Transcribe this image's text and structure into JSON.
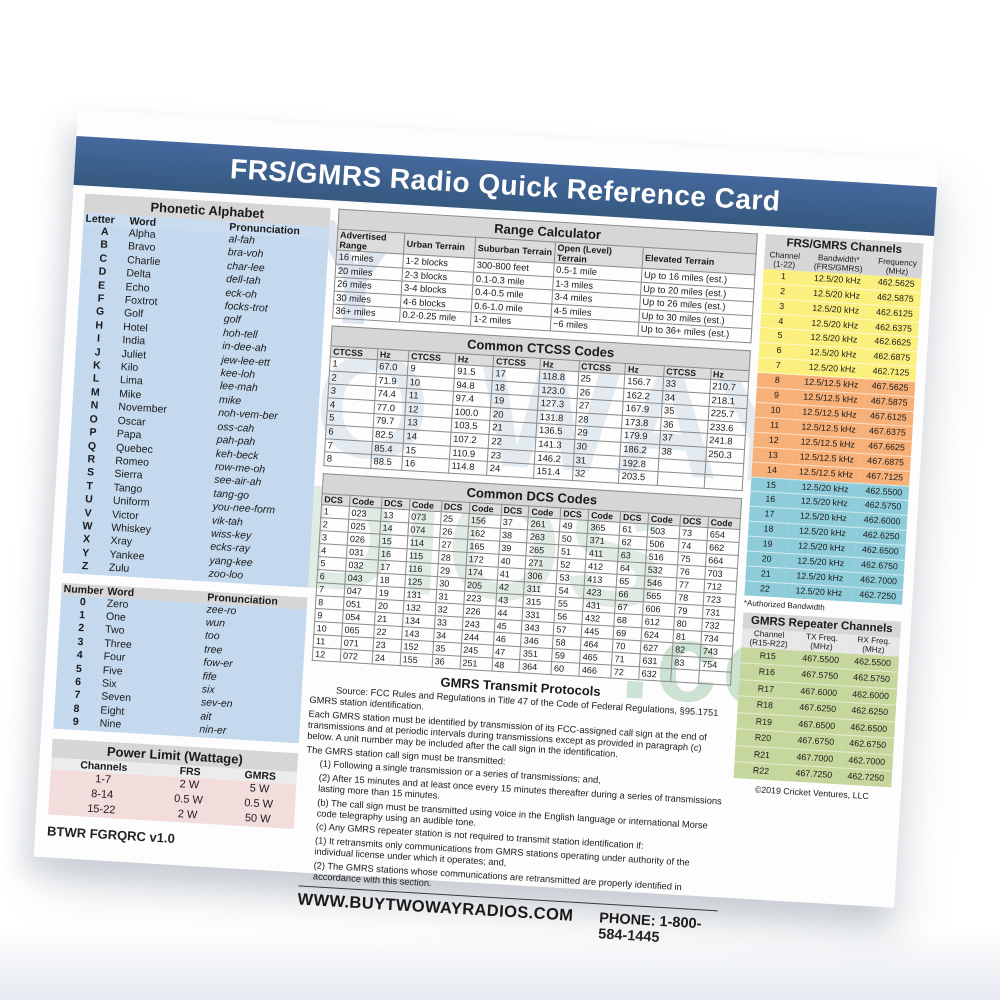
{
  "title": "FRS/GMRS Radio Quick Reference Card",
  "watermark_lines": [
    "BUY",
    "TWO WAY",
    "RADIOS",
    ".com"
  ],
  "phonetic": {
    "title": "Phonetic Alphabet",
    "headers": [
      "Letter",
      "Word",
      "Pronunciation"
    ],
    "rows": [
      [
        "A",
        "Alpha",
        "al-fah"
      ],
      [
        "B",
        "Bravo",
        "bra-voh"
      ],
      [
        "C",
        "Charlie",
        "char-lee"
      ],
      [
        "D",
        "Delta",
        "dell-tah"
      ],
      [
        "E",
        "Echo",
        "eck-oh"
      ],
      [
        "F",
        "Foxtrot",
        "focks-trot"
      ],
      [
        "G",
        "Golf",
        "golf"
      ],
      [
        "H",
        "Hotel",
        "hoh-tell"
      ],
      [
        "I",
        "India",
        "in-dee-ah"
      ],
      [
        "J",
        "Juliet",
        "jew-lee-ett"
      ],
      [
        "K",
        "Kilo",
        "kee-loh"
      ],
      [
        "L",
        "Lima",
        "lee-mah"
      ],
      [
        "M",
        "Mike",
        "mike"
      ],
      [
        "N",
        "November",
        "noh-vem-ber"
      ],
      [
        "O",
        "Oscar",
        "oss-cah"
      ],
      [
        "P",
        "Papa",
        "pah-pah"
      ],
      [
        "Q",
        "Quebec",
        "keh-beck"
      ],
      [
        "R",
        "Romeo",
        "row-me-oh"
      ],
      [
        "S",
        "Sierra",
        "see-air-ah"
      ],
      [
        "T",
        "Tango",
        "tang-go"
      ],
      [
        "U",
        "Uniform",
        "you-nee-form"
      ],
      [
        "V",
        "Victor",
        "vik-tah"
      ],
      [
        "W",
        "Whiskey",
        "wiss-key"
      ],
      [
        "X",
        "Xray",
        "ecks-ray"
      ],
      [
        "Y",
        "Yankee",
        "yang-kee"
      ],
      [
        "Z",
        "Zulu",
        "zoo-loo"
      ]
    ]
  },
  "numbers": {
    "headers": [
      "Number",
      "Word",
      "Pronunciation"
    ],
    "rows": [
      [
        "0",
        "Zero",
        "zee-ro"
      ],
      [
        "1",
        "One",
        "wun"
      ],
      [
        "2",
        "Two",
        "too"
      ],
      [
        "3",
        "Three",
        "tree"
      ],
      [
        "4",
        "Four",
        "fow-er"
      ],
      [
        "5",
        "Five",
        "fife"
      ],
      [
        "6",
        "Six",
        "six"
      ],
      [
        "7",
        "Seven",
        "sev-en"
      ],
      [
        "8",
        "Eight",
        "ait"
      ],
      [
        "9",
        "Nine",
        "nin-er"
      ]
    ]
  },
  "power": {
    "title": "Power Limit (Wattage)",
    "headers": [
      "Channels",
      "FRS",
      "GMRS"
    ],
    "rows": [
      [
        "1-7",
        "2 W",
        "5 W"
      ],
      [
        "8-14",
        "0.5 W",
        "0.5 W"
      ],
      [
        "15-22",
        "2 W",
        "50 W"
      ]
    ]
  },
  "version": "BTWR FGRQRC v1.0",
  "range": {
    "title": "Range Calculator",
    "headers": [
      "Advertised Range",
      "Urban Terrain",
      "Suburban Terrain",
      "Open (Level) Terrain",
      "Elevated Terrain"
    ],
    "rows": [
      [
        "16 miles",
        "1-2 blocks",
        "300-800 feet",
        "0.5-1 mile",
        "Up to 16 miles (est.)"
      ],
      [
        "20 miles",
        "2-3 blocks",
        "0.1-0.3 mile",
        "1-3 miles",
        "Up to 20 miles (est.)"
      ],
      [
        "26 miles",
        "3-4 blocks",
        "0.4-0.5 mile",
        "3-4 miles",
        "Up to 26 miles (est.)"
      ],
      [
        "30 miles",
        "4-6 blocks",
        "0.6-1.0 mile",
        "4-5 miles",
        "Up to 30 miles (est.)"
      ],
      [
        "36+ miles",
        "0.2-0.25 mile",
        "1-2 miles",
        "~6 miles",
        "Up to 36+ miles (est.)"
      ]
    ]
  },
  "ctcss": {
    "title": "Common CTCSS Codes",
    "col_headers": [
      "CTCSS",
      "Hz"
    ],
    "grid_cols": 5,
    "grid_rows": 8,
    "pairs": [
      [
        "1",
        "67.0"
      ],
      [
        "2",
        "71.9"
      ],
      [
        "3",
        "74.4"
      ],
      [
        "4",
        "77.0"
      ],
      [
        "5",
        "79.7"
      ],
      [
        "6",
        "82.5"
      ],
      [
        "7",
        "85.4"
      ],
      [
        "8",
        "88.5"
      ],
      [
        "9",
        "91.5"
      ],
      [
        "10",
        "94.8"
      ],
      [
        "11",
        "97.4"
      ],
      [
        "12",
        "100.0"
      ],
      [
        "13",
        "103.5"
      ],
      [
        "14",
        "107.2"
      ],
      [
        "15",
        "110.9"
      ],
      [
        "16",
        "114.8"
      ],
      [
        "17",
        "118.8"
      ],
      [
        "18",
        "123.0"
      ],
      [
        "19",
        "127.3"
      ],
      [
        "20",
        "131.8"
      ],
      [
        "21",
        "136.5"
      ],
      [
        "22",
        "141.3"
      ],
      [
        "23",
        "146.2"
      ],
      [
        "24",
        "151.4"
      ],
      [
        "25",
        "156.7"
      ],
      [
        "26",
        "162.2"
      ],
      [
        "27",
        "167.9"
      ],
      [
        "28",
        "173.8"
      ],
      [
        "29",
        "179.9"
      ],
      [
        "30",
        "186.2"
      ],
      [
        "31",
        "192.8"
      ],
      [
        "32",
        "203.5"
      ],
      [
        "33",
        "210.7"
      ],
      [
        "34",
        "218.1"
      ],
      [
        "35",
        "225.7"
      ],
      [
        "36",
        "233.6"
      ],
      [
        "37",
        "241.8"
      ],
      [
        "38",
        "250.3"
      ]
    ]
  },
  "dcs": {
    "title": "Common DCS Codes",
    "col_headers": [
      "DCS",
      "Code"
    ],
    "grid_cols": 7,
    "grid_rows": 12,
    "pairs": [
      [
        "1",
        "023"
      ],
      [
        "2",
        "025"
      ],
      [
        "3",
        "026"
      ],
      [
        "4",
        "031"
      ],
      [
        "5",
        "032"
      ],
      [
        "6",
        "043"
      ],
      [
        "7",
        "047"
      ],
      [
        "8",
        "051"
      ],
      [
        "9",
        "054"
      ],
      [
        "10",
        "065"
      ],
      [
        "11",
        "071"
      ],
      [
        "12",
        "072"
      ],
      [
        "13",
        "073"
      ],
      [
        "14",
        "074"
      ],
      [
        "15",
        "114"
      ],
      [
        "16",
        "115"
      ],
      [
        "17",
        "116"
      ],
      [
        "18",
        "125"
      ],
      [
        "19",
        "131"
      ],
      [
        "20",
        "132"
      ],
      [
        "21",
        "134"
      ],
      [
        "22",
        "143"
      ],
      [
        "23",
        "152"
      ],
      [
        "24",
        "155"
      ],
      [
        "25",
        "156"
      ],
      [
        "26",
        "162"
      ],
      [
        "27",
        "165"
      ],
      [
        "28",
        "172"
      ],
      [
        "29",
        "174"
      ],
      [
        "30",
        "205"
      ],
      [
        "31",
        "223"
      ],
      [
        "32",
        "226"
      ],
      [
        "33",
        "243"
      ],
      [
        "34",
        "244"
      ],
      [
        "35",
        "245"
      ],
      [
        "36",
        "251"
      ],
      [
        "37",
        "261"
      ],
      [
        "38",
        "263"
      ],
      [
        "39",
        "265"
      ],
      [
        "40",
        "271"
      ],
      [
        "41",
        "306"
      ],
      [
        "42",
        "311"
      ],
      [
        "43",
        "315"
      ],
      [
        "44",
        "331"
      ],
      [
        "45",
        "343"
      ],
      [
        "46",
        "346"
      ],
      [
        "47",
        "351"
      ],
      [
        "48",
        "364"
      ],
      [
        "49",
        "365"
      ],
      [
        "50",
        "371"
      ],
      [
        "51",
        "411"
      ],
      [
        "52",
        "412"
      ],
      [
        "53",
        "413"
      ],
      [
        "54",
        "423"
      ],
      [
        "55",
        "431"
      ],
      [
        "56",
        "432"
      ],
      [
        "57",
        "445"
      ],
      [
        "58",
        "464"
      ],
      [
        "59",
        "465"
      ],
      [
        "60",
        "466"
      ],
      [
        "61",
        "503"
      ],
      [
        "62",
        "506"
      ],
      [
        "63",
        "516"
      ],
      [
        "64",
        "532"
      ],
      [
        "65",
        "546"
      ],
      [
        "66",
        "565"
      ],
      [
        "67",
        "606"
      ],
      [
        "68",
        "612"
      ],
      [
        "69",
        "624"
      ],
      [
        "70",
        "627"
      ],
      [
        "71",
        "631"
      ],
      [
        "72",
        "632"
      ],
      [
        "73",
        "654"
      ],
      [
        "74",
        "662"
      ],
      [
        "75",
        "664"
      ],
      [
        "76",
        "703"
      ],
      [
        "77",
        "712"
      ],
      [
        "78",
        "723"
      ],
      [
        "79",
        "731"
      ],
      [
        "80",
        "732"
      ],
      [
        "81",
        "734"
      ],
      [
        "82",
        "743"
      ],
      [
        "83",
        "754"
      ]
    ]
  },
  "protocols": {
    "title": "GMRS Transmit Protocols",
    "paragraphs": [
      "Source: FCC Rules and Regulations in Title 47 of the Code of Federal Regulations, §95.1751 GMRS station identification.",
      "Each GMRS station must be identified by transmission of its FCC-assigned call sign at the end of transmissions and at periodic intervals during transmissions except as provided in paragraph (c) below. A unit number may be included after the call sign in the identification.",
      "The GMRS station call sign must be transmitted:",
      "(1) Following a single transmission or a series of transmissions; and,",
      "(2) After 15 minutes and at least once every 15 minutes thereafter during a series of transmissions lasting more than 15 minutes.",
      "(b) The call sign must be transmitted using voice in the English language or international Morse code telegraphy using an audible tone.",
      "(c) Any GMRS repeater station is not required to transmit station identification if:",
      "(1) It retransmits only communications from GMRS stations operating under authority of the individual license under which it operates; and,",
      "(2) The GMRS stations whose communications are retransmitted are properly identified in accordance with this section."
    ]
  },
  "footer": {
    "website": "WWW.BUYTWOWAYRADIOS.COM",
    "phone": "PHONE: 1-800-584-1445"
  },
  "channels": {
    "title": "FRS/GMRS Channels",
    "headers": [
      "Channel\n(1-22)",
      "Bandwidth*\n(FRS/GMRS)",
      "Frequency\n(MHz)"
    ],
    "footnote": "*Authorized Bandwidth",
    "rows": [
      [
        "1",
        "12.5/20 kHz",
        "462.5625",
        "g-yellow"
      ],
      [
        "2",
        "12.5/20 kHz",
        "462.5875",
        "g-yellow"
      ],
      [
        "3",
        "12.5/20 kHz",
        "462.6125",
        "g-yellow"
      ],
      [
        "4",
        "12.5/20 kHz",
        "462.6375",
        "g-yellow"
      ],
      [
        "5",
        "12.5/20 kHz",
        "462.6625",
        "g-yellow"
      ],
      [
        "6",
        "12.5/20 kHz",
        "462.6875",
        "g-yellow"
      ],
      [
        "7",
        "12.5/20 kHz",
        "462.7125",
        "g-yellow"
      ],
      [
        "8",
        "12.5/12.5 kHz",
        "467.5625",
        "g-orange"
      ],
      [
        "9",
        "12.5/12.5 kHz",
        "467.5875",
        "g-orange"
      ],
      [
        "10",
        "12.5/12.5 kHz",
        "467.6125",
        "g-orange"
      ],
      [
        "11",
        "12.5/12.5 kHz",
        "467.6375",
        "g-orange"
      ],
      [
        "12",
        "12.5/12.5 kHz",
        "467.6625",
        "g-orange"
      ],
      [
        "13",
        "12.5/12.5 kHz",
        "467.6875",
        "g-orange"
      ],
      [
        "14",
        "12.5/12.5 kHz",
        "467.7125",
        "g-orange"
      ],
      [
        "15",
        "12.5/20 kHz",
        "462.5500",
        "g-teal"
      ],
      [
        "16",
        "12.5/20 kHz",
        "462.5750",
        "g-teal"
      ],
      [
        "17",
        "12.5/20 kHz",
        "462.6000",
        "g-teal"
      ],
      [
        "18",
        "12.5/20 kHz",
        "462.6250",
        "g-teal"
      ],
      [
        "19",
        "12.5/20 kHz",
        "462.6500",
        "g-teal"
      ],
      [
        "20",
        "12.5/20 kHz",
        "462.6750",
        "g-teal"
      ],
      [
        "21",
        "12.5/20 kHz",
        "462.7000",
        "g-teal"
      ],
      [
        "22",
        "12.5/20 kHz",
        "462.7250",
        "g-teal"
      ]
    ]
  },
  "repeater": {
    "title": "GMRS Repeater Channels",
    "headers": [
      "Channel\n(R15-R22)",
      "TX Freq.\n(MHz)",
      "RX Freq.\n(MHz)"
    ],
    "rows": [
      [
        "R15",
        "467.5500",
        "462.5500"
      ],
      [
        "R16",
        "467.5750",
        "462.5750"
      ],
      [
        "R17",
        "467.6000",
        "462.6000"
      ],
      [
        "R18",
        "467.6250",
        "462.6250"
      ],
      [
        "R19",
        "467.6500",
        "462.6500"
      ],
      [
        "R20",
        "467.6750",
        "462.6750"
      ],
      [
        "R21",
        "467.7000",
        "462.7000"
      ],
      [
        "R22",
        "467.7250",
        "462.7250"
      ]
    ]
  },
  "copyright": "©2019 Cricket Ventures, LLC",
  "colors": {
    "banner_blue": "#3B6191",
    "phonetic_blue": "#C4D8EE",
    "header_band_grey": "#D6D6D6",
    "channels_yellow": "#FBF07E",
    "channels_orange": "#F6B078",
    "channels_teal": "#8FCCD9",
    "repeater_green": "#C5D79C",
    "power_pink": "#F2DDDC"
  }
}
